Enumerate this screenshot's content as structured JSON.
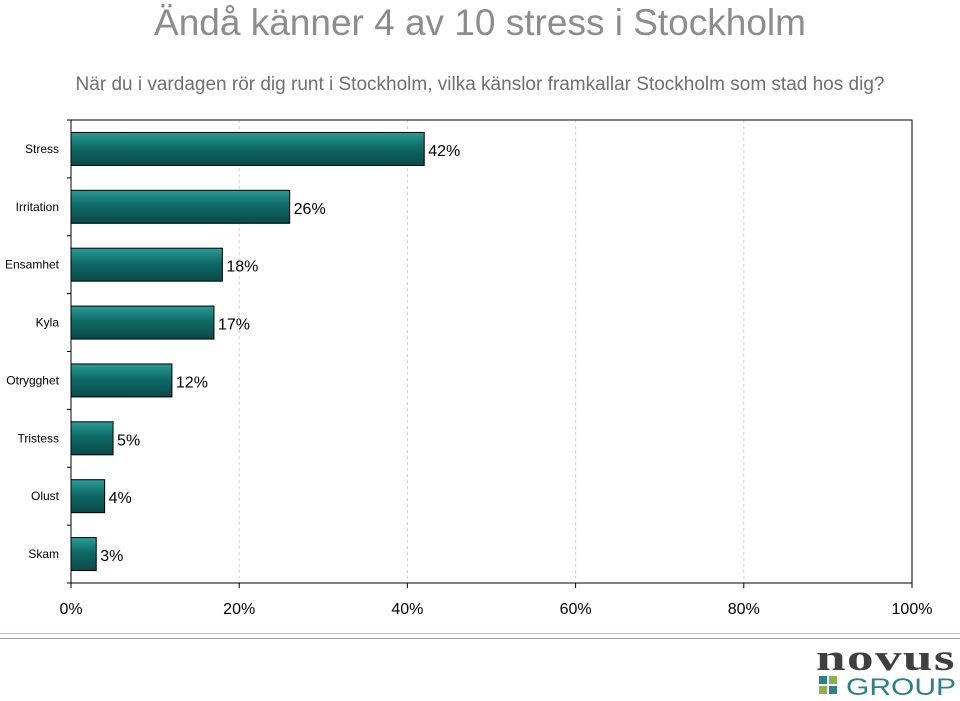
{
  "page": {
    "title": "Ändå känner 4 av 10 stress i Stockholm",
    "subtitle": "När du i vardagen rör dig runt i Stockholm, vilka känslor framkallar Stockholm som stad hos dig?"
  },
  "chart_data": {
    "type": "bar",
    "orientation": "horizontal",
    "categories": [
      "Stress",
      "Irritation",
      "Ensamhet",
      "Kyla",
      "Otrygghet",
      "Tristess",
      "Olust",
      "Skam"
    ],
    "values": [
      42,
      26,
      18,
      17,
      12,
      5,
      4,
      3
    ],
    "value_labels": [
      "42%",
      "26%",
      "18%",
      "17%",
      "12%",
      "5%",
      "4%",
      "3%"
    ],
    "xlim": [
      0,
      100
    ],
    "x_ticks": [
      0,
      20,
      40,
      60,
      80,
      100
    ],
    "x_tick_labels": [
      "0%",
      "20%",
      "40%",
      "60%",
      "80%",
      "100%"
    ],
    "xlabel": "",
    "ylabel": "",
    "grid": "vertical dashed",
    "bar_color": "#0f5f5c",
    "bar_color_light": "#1f8a86"
  },
  "footer": {
    "logo_word": "novus",
    "logo_sub": "GROUP",
    "rule_color_1": "#b9c9a8",
    "rule_color_2": "#9aa6a6"
  },
  "colors": {
    "title": "#8c8c8c",
    "logo_dark": "#3f3f3f",
    "logo_teal": "#2e7f8c",
    "logo_green": "#8fb04a"
  }
}
